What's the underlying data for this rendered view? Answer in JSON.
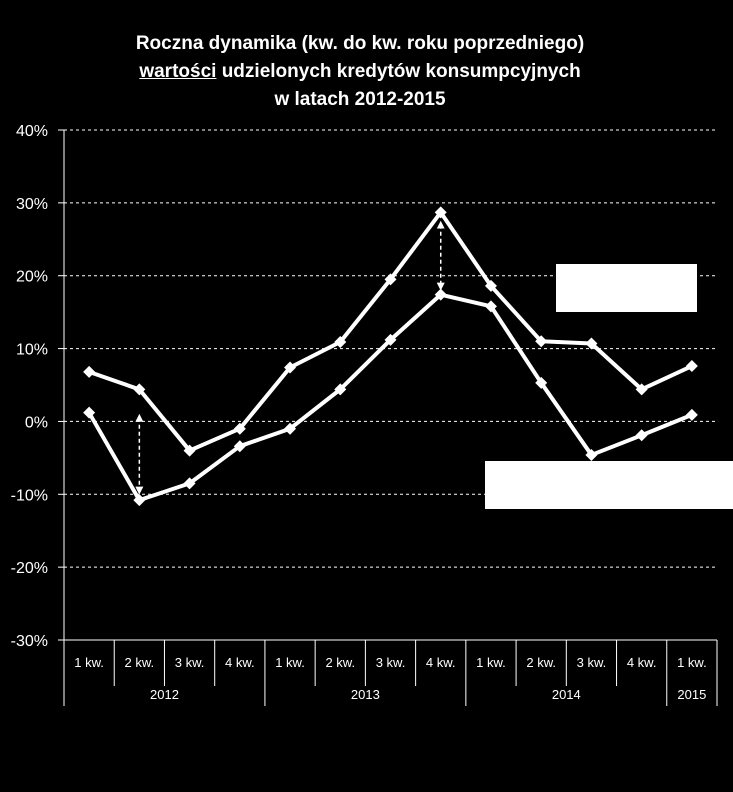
{
  "title": {
    "line1": "Roczna dynamika (kw. do kw. roku poprzedniego)",
    "line2_underlined": "wartości",
    "line2_rest": " udzielonych kredytów konsumpcyjnych",
    "line3": "w latach 2012-2015"
  },
  "colors": {
    "background": "#000000",
    "foreground": "#ffffff"
  },
  "chart_data": {
    "type": "line",
    "title": "Roczna dynamika (kw. do kw. roku poprzedniego) wartości udzielonych kredytów konsumpcyjnych w latach 2012-2015",
    "categories": [
      "1 kw.",
      "2 kw.",
      "3 kw.",
      "4 kw.",
      "1 kw.",
      "2 kw.",
      "3 kw.",
      "4 kw.",
      "1 kw.",
      "2 kw.",
      "3 kw.",
      "4 kw.",
      "1 kw."
    ],
    "category_groups": [
      {
        "label": "2012",
        "count": 4
      },
      {
        "label": "2013",
        "count": 4
      },
      {
        "label": "2014",
        "count": 4
      },
      {
        "label": "2015",
        "count": 1
      }
    ],
    "series": [
      {
        "values": [
          6.8,
          4.4,
          -4.0,
          -1.0,
          7.4,
          10.9,
          19.5,
          28.7,
          18.6,
          11.0,
          10.7,
          4.4,
          7.6
        ],
        "marker": "diamond",
        "color": "#ffffff"
      },
      {
        "values": [
          1.2,
          -10.8,
          -8.5,
          -3.4,
          -1.0,
          4.4,
          11.2,
          17.4,
          15.8,
          5.3,
          -4.6,
          -1.9,
          0.9
        ],
        "marker": "diamond",
        "color": "#ffffff"
      }
    ],
    "ylim": [
      -30,
      40
    ],
    "yticks": [
      "40%",
      "30%",
      "20%",
      "10%",
      "0%",
      "-10%",
      "-20%",
      "-30%"
    ],
    "ytick_values": [
      40,
      30,
      20,
      10,
      0,
      -10,
      -20,
      -30
    ],
    "grid": true,
    "grid_style": "dashed",
    "annotations": [
      {
        "type": "double-arrow-dashed",
        "category_index": 1,
        "from": 0.5,
        "to": -9.5
      },
      {
        "type": "double-arrow-dashed",
        "category_index": 7,
        "from": 27,
        "to": 18.5
      }
    ],
    "legend_boxes": [
      "top-right",
      "right-middle"
    ]
  }
}
